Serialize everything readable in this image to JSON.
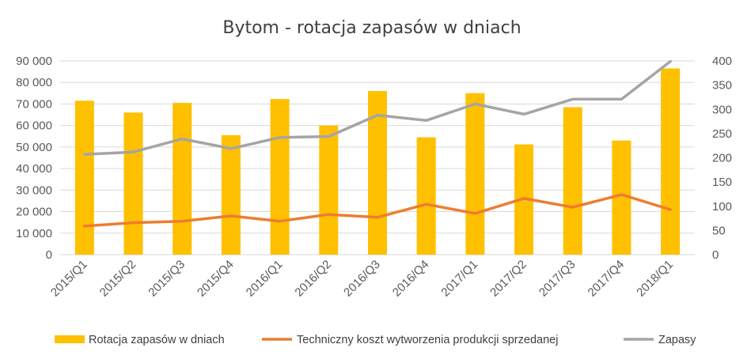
{
  "chart_data": {
    "type": "bar",
    "title": "Bytom - rotacja zapasów w dniach",
    "categories": [
      "2015/Q1",
      "2015/Q2",
      "2015/Q3",
      "2015/Q4",
      "2016/Q1",
      "2016/Q2",
      "2016/Q3",
      "2016/Q4",
      "2017/Q1",
      "2017/Q2",
      "2017/Q3",
      "2017/Q4",
      "2018/Q1"
    ],
    "left_axis": {
      "min": 0,
      "max": 90000,
      "step": 10000,
      "tick_labels": [
        "0",
        "10 000",
        "20 000",
        "30 000",
        "40 000",
        "50 000",
        "60 000",
        "70 000",
        "80 000",
        "90 000"
      ]
    },
    "right_axis": {
      "min": 0,
      "max": 400,
      "step": 50,
      "tick_labels": [
        "0",
        "50",
        "100",
        "150",
        "200",
        "250",
        "300",
        "350",
        "400"
      ]
    },
    "series": [
      {
        "name": "Rotacja zapasów w dniach",
        "kind": "bar",
        "axis": "left",
        "color": "#FFC000",
        "values": [
          71500,
          66000,
          70500,
          55500,
          72300,
          60000,
          76000,
          54500,
          75000,
          51200,
          68500,
          53000,
          86500
        ]
      },
      {
        "name": "Techniczny koszt wytworzenia produkcji sprzedanej",
        "kind": "line",
        "axis": "right",
        "color": "#ED7D31",
        "values": [
          59,
          66,
          69,
          80,
          69,
          83,
          77,
          104,
          85,
          116,
          98,
          124,
          93
        ]
      },
      {
        "name": "Zapasy",
        "kind": "line",
        "axis": "right",
        "color": "#A5A5A5",
        "values": [
          207,
          212,
          239,
          219,
          242,
          244,
          288,
          277,
          311,
          290,
          321,
          321,
          399
        ]
      }
    ],
    "grid": true,
    "legend": "bottom"
  }
}
